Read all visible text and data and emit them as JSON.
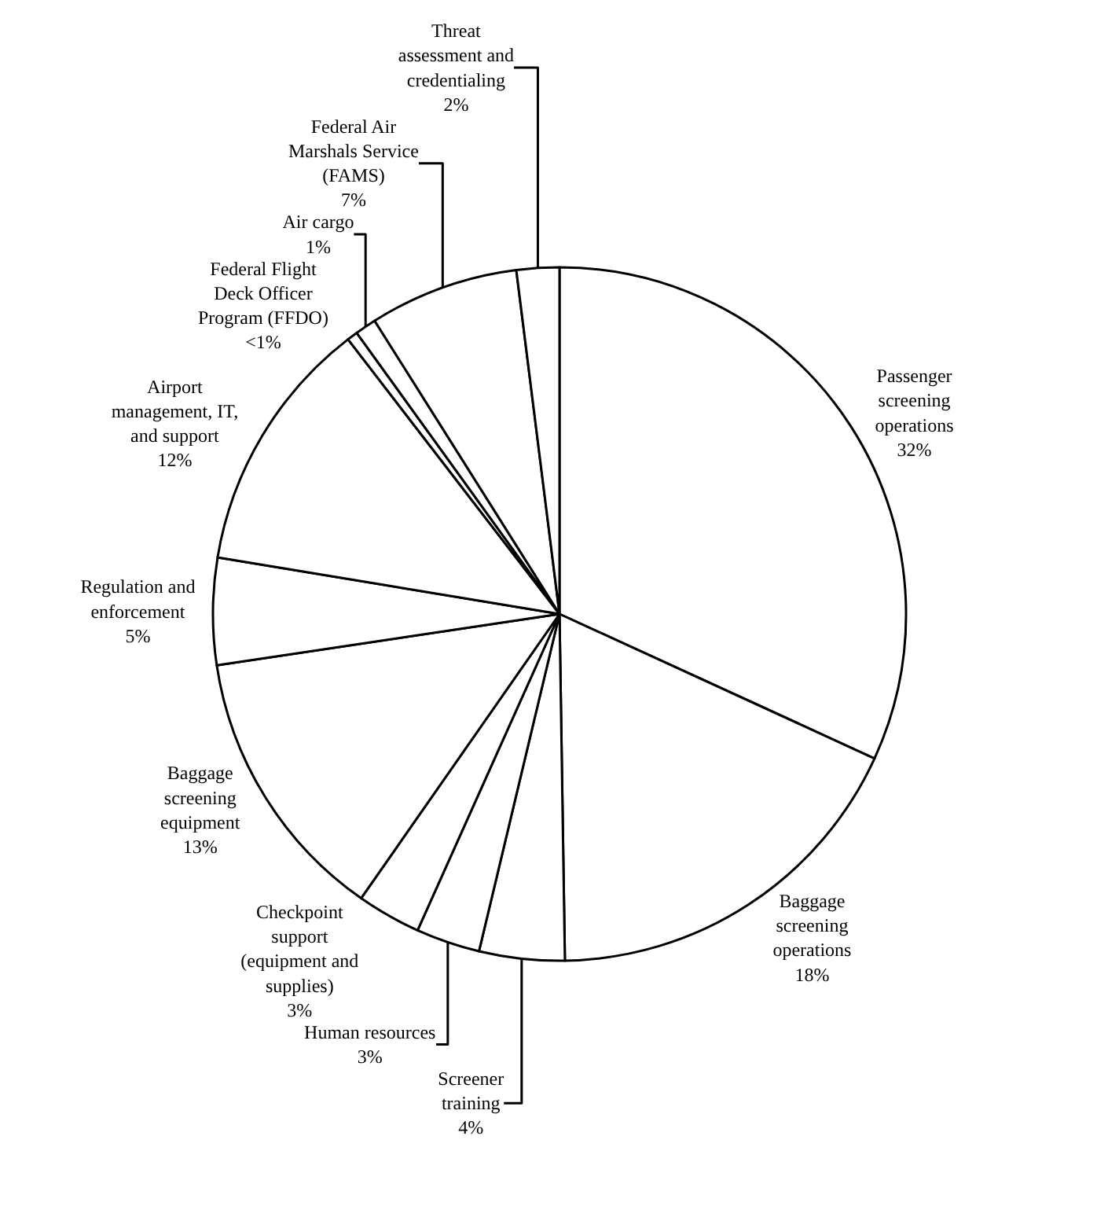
{
  "chart_data": {
    "type": "pie",
    "categories": [
      "Passenger screening operations",
      "Baggage screening operations",
      "Screener training",
      "Human resources",
      "Checkpoint support (equipment and supplies)",
      "Baggage screening equipment",
      "Regulation and enforcement",
      "Airport management, IT, and support",
      "Federal Flight Deck Officer Program (FFDO)",
      "Air cargo",
      "Federal Air Marshals Service (FAMS)",
      "Threat assessment and credentialing"
    ],
    "values": [
      32,
      18,
      4,
      3,
      3,
      13,
      5,
      12,
      0.5,
      1,
      7,
      2
    ],
    "value_labels": [
      "32%",
      "18%",
      "4%",
      "3%",
      "3%",
      "13%",
      "5%",
      "12%",
      "<1%",
      "1%",
      "7%",
      "2%"
    ],
    "colors": [
      "#ffffff",
      "#ffffff",
      "#ffffff",
      "#ffffff",
      "#ffffff",
      "#ffffff",
      "#ffffff",
      "#ffffff",
      "#ffffff",
      "#ffffff",
      "#ffffff",
      "#ffffff"
    ],
    "legend": false
  }
}
